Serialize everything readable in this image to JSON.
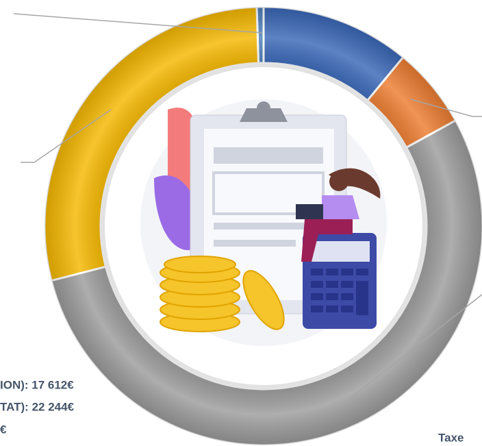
{
  "chart_data": {
    "type": "donut",
    "categories": [
      null,
      null,
      null,
      null,
      null
    ],
    "values": [
      0.5,
      11,
      6,
      54,
      28.5
    ],
    "colors": [
      "#4f81bd",
      "#3a68b8",
      "#ed7d31",
      "#9c9c9c",
      "#f5b800"
    ],
    "annotations": [
      "ION): 17 612€",
      "TAT): 22 244€",
      "€",
      "Taxe"
    ]
  }
}
